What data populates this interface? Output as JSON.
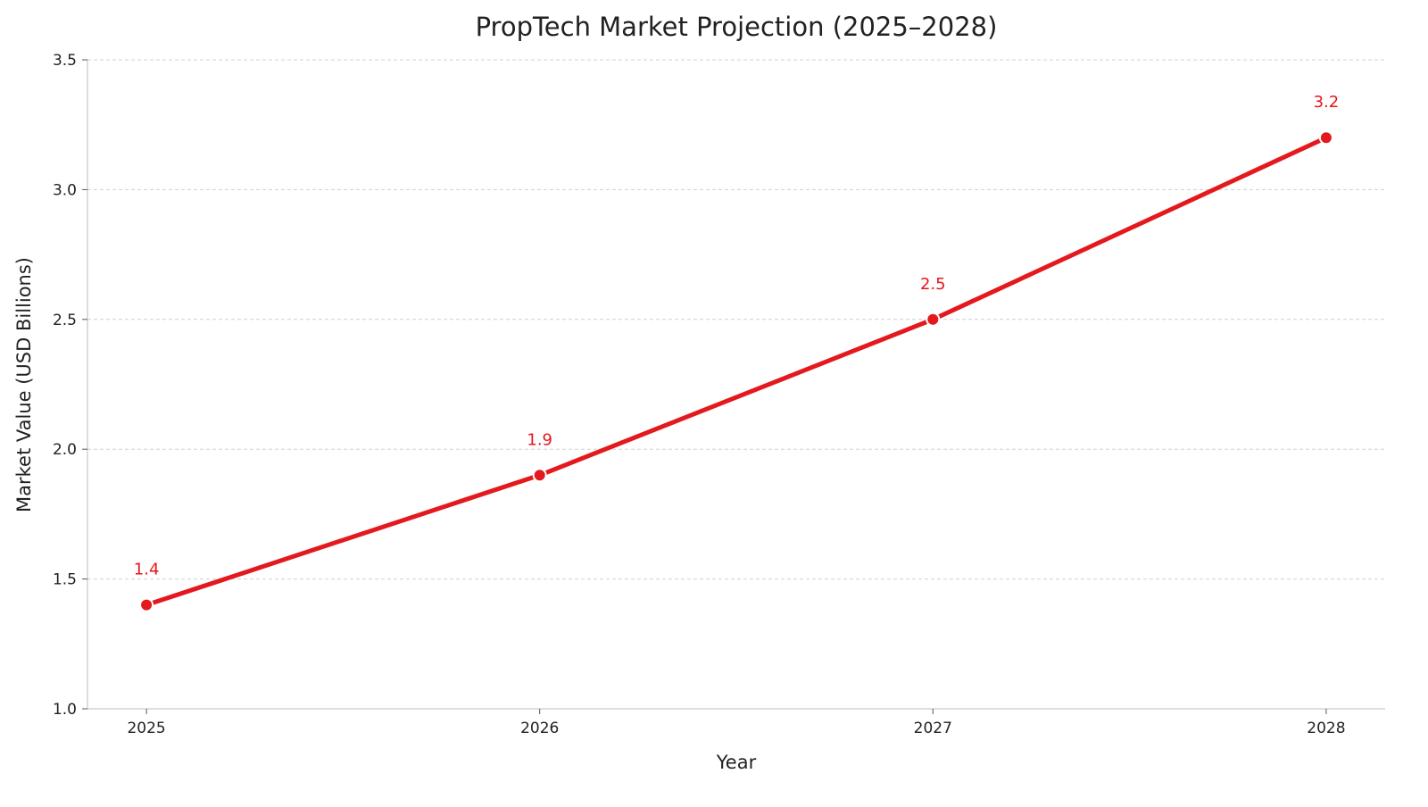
{
  "chart_data": {
    "type": "line",
    "title": "PropTech Market Projection (2025–2028)",
    "xlabel": "Year",
    "ylabel": "Market Value (USD Billions)",
    "categories": [
      "2025",
      "2026",
      "2027",
      "2028"
    ],
    "x": [
      2025,
      2026,
      2027,
      2028
    ],
    "values": [
      1.4,
      1.9,
      2.5,
      3.2
    ],
    "data_labels": [
      "1.4",
      "1.9",
      "2.5",
      "3.2"
    ],
    "ylim": [
      1.0,
      3.5
    ],
    "yticks": [
      "1.0",
      "1.5",
      "2.0",
      "2.5",
      "3.0",
      "3.5"
    ],
    "grid": "horizontal dashed",
    "legend": "none",
    "colors": {
      "line": "#e3191e",
      "label": "#e8141b",
      "grid": "#d0d0d0",
      "axis": "#bbbbbb"
    }
  }
}
